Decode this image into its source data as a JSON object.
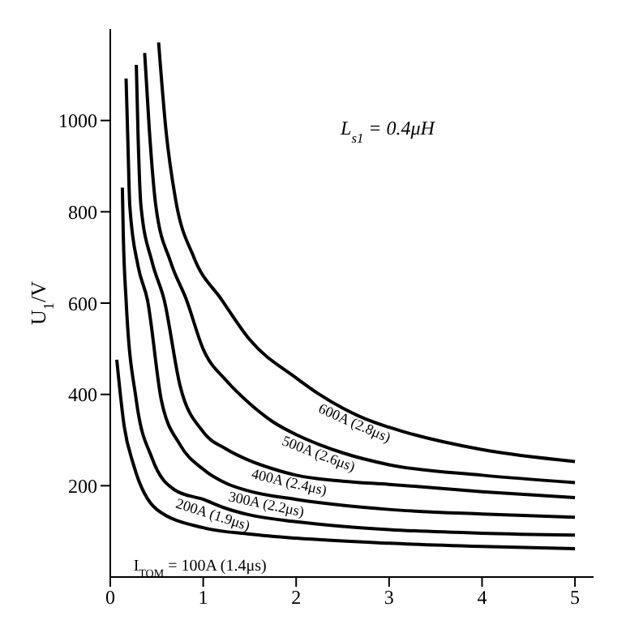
{
  "chart_data": {
    "type": "line",
    "ylabel": "U$_{1}$/V",
    "annotations": [
      "L$_{s1}$ = 0.4μH"
    ],
    "xlim": [
      0,
      5.2
    ],
    "ylim": [
      0,
      1200
    ],
    "xticks": [
      0,
      1,
      2,
      3,
      4,
      5
    ],
    "yticks": [
      200,
      400,
      600,
      800,
      1000
    ],
    "marker": "none",
    "line_style": "solid",
    "series": [
      {
        "name": "I$_{TOM}$ = 100A (1.4μs)",
        "color": "#000000",
        "x": [
          0.07,
          0.15,
          0.25,
          0.5,
          1,
          1.5,
          2,
          3,
          4,
          5
        ],
        "values": [
          476,
          330,
          246,
          148,
          108,
          94,
          85,
          74,
          67,
          62
        ]
      },
      {
        "name": "200A (1.9μs)",
        "color": "#000000",
        "x": [
          0.13,
          0.14,
          0.17,
          0.28,
          0.45,
          0.7,
          1,
          1.25,
          1.5,
          2,
          2.5,
          3,
          4,
          5
        ],
        "values": [
          853,
          750,
          607,
          387,
          260,
          190,
          170,
          150,
          136,
          121,
          111,
          104,
          96,
          92
        ]
      },
      {
        "name": "300A (2.2μs)",
        "color": "#000000",
        "x": [
          0.17,
          0.19,
          0.21,
          0.3,
          0.4,
          0.55,
          0.75,
          1,
          1.25,
          1.5,
          2,
          2.5,
          3,
          4,
          5
        ],
        "values": [
          1092,
          950,
          813,
          680,
          607,
          387,
          290,
          236,
          205,
          188,
          170,
          157,
          148,
          138,
          131
        ]
      },
      {
        "name": "400A (2.4μs)",
        "color": "#000000",
        "x": [
          0.28,
          0.3,
          0.33,
          0.45,
          0.58,
          0.75,
          1,
          1.25,
          1.5,
          1.75,
          2,
          2.5,
          3,
          4,
          5
        ],
        "values": [
          1122,
          960,
          813,
          690,
          607,
          420,
          318,
          280,
          255,
          237,
          223,
          210,
          203,
          187,
          174
        ]
      },
      {
        "name": "500A (2.6μs)",
        "color": "#000000",
        "x": [
          0.37,
          0.42,
          0.49,
          0.65,
          0.82,
          1,
          1.25,
          1.5,
          1.75,
          2,
          2.25,
          2.5,
          3,
          4,
          5
        ],
        "values": [
          1148,
          980,
          813,
          690,
          607,
          499,
          430,
          380,
          340,
          312,
          290,
          272,
          246,
          223,
          207
        ]
      },
      {
        "name": "600A (2.8μs)",
        "color": "#000000",
        "x": [
          0.52,
          0.6,
          0.7,
          0.9,
          1.2,
          1.5,
          2,
          2.25,
          2.5,
          2.75,
          3,
          4,
          5
        ],
        "values": [
          1171,
          977,
          830,
          700,
          607,
          520,
          436,
          400,
          370,
          346,
          328,
          279,
          253
        ]
      }
    ]
  }
}
